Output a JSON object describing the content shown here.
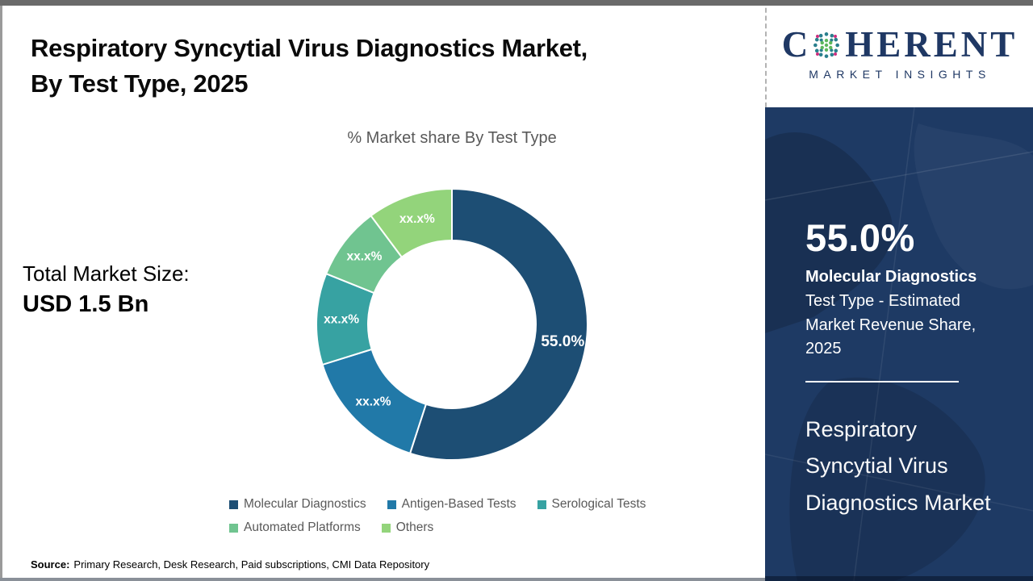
{
  "header": {
    "title_line1": "Respiratory Syncytial Virus Diagnostics Market,",
    "title_line2": "By Test Type, 2025"
  },
  "total_market": {
    "label": "Total Market Size:",
    "value": "USD 1.5 Bn"
  },
  "chart_data": {
    "type": "pie",
    "subtype": "donut",
    "title": "% Market share By Test Type",
    "categories": [
      "Molecular Diagnostics",
      "Antigen-Based Tests",
      "Serological Tests",
      "Automated Platforms",
      "Others"
    ],
    "values": [
      55.0,
      15.2,
      10.9,
      8.7,
      10.2
    ],
    "displayed_labels": [
      "55.0%",
      "xx.x%",
      "xx.x%",
      "xx.x%",
      "xx.x%"
    ],
    "colors": [
      "#1d4e74",
      "#2179a8",
      "#37a2a2",
      "#70c490",
      "#93d47b"
    ],
    "start_angle_deg": 0,
    "direction": "clockwise",
    "legend_position": "bottom",
    "label_color": "#ffffff"
  },
  "source": {
    "label": "Source:",
    "text": "Primary Research, Desk Research, Paid subscriptions, CMI Data Repository"
  },
  "sidebar": {
    "logo": {
      "brand_first_letter": "C",
      "brand_rest": "HERENT",
      "subtitle": "MARKET INSIGHTS",
      "brand_color": "#1f3864"
    },
    "panel_color": "#1e3a64",
    "stat_value": "55.0%",
    "stat_segment": "Molecular Diagnostics",
    "stat_desc": "Test Type - Estimated Market Revenue Share, 2025",
    "market_name": "Respiratory Syncytial Virus Diagnostics Market"
  }
}
